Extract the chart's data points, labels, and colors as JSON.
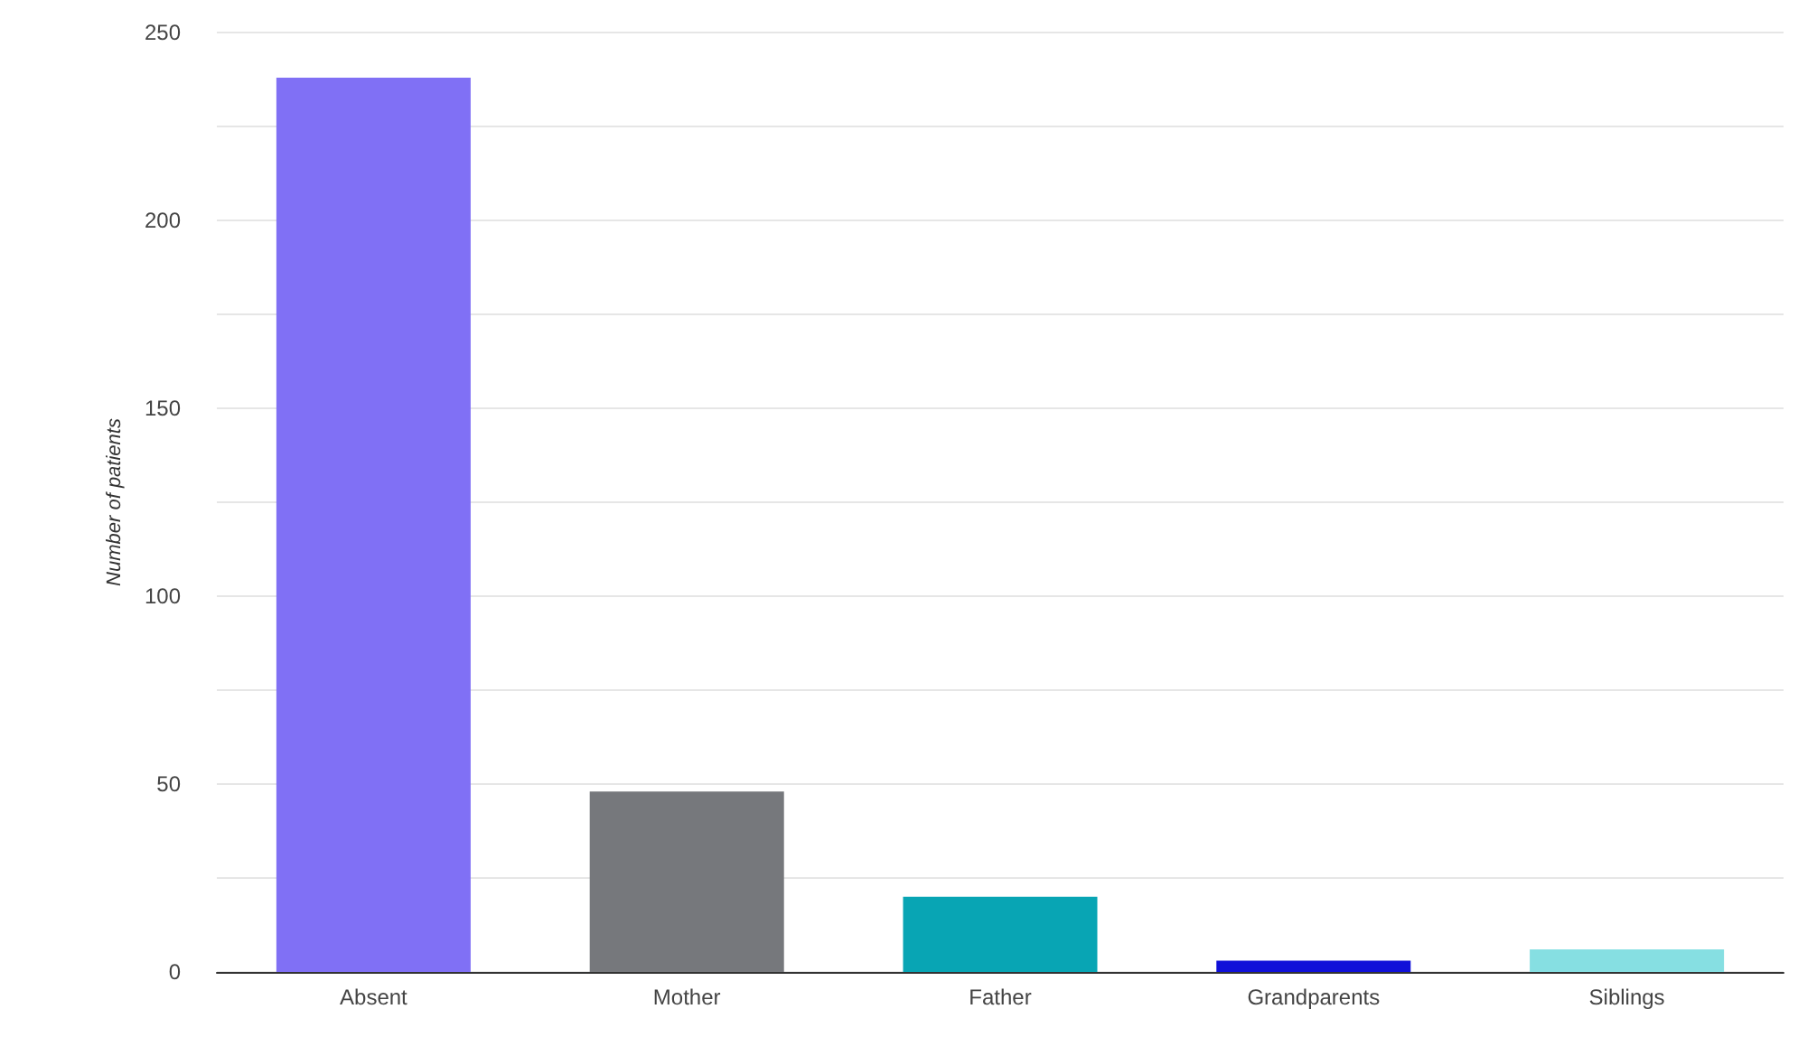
{
  "chart_data": {
    "type": "bar",
    "ylabel": "Number of patients",
    "categories": [
      "Absent",
      "Mother",
      "Father",
      "Grandparents",
      "Siblings"
    ],
    "values": [
      238,
      48,
      20,
      3,
      6
    ],
    "colors": [
      "#8070f5",
      "#76787c",
      "#08a5b4",
      "#1010d8",
      "#86dfe2"
    ],
    "ylim": [
      0,
      250
    ],
    "yticks": [
      0,
      {
        "value": 25,
        "label": null
      },
      50,
      {
        "value": 75,
        "label": null
      },
      100,
      {
        "value": 125,
        "label": null
      },
      150,
      {
        "value": 175,
        "label": null
      },
      200,
      {
        "value": 225,
        "label": null
      },
      250
    ],
    "grid": "y"
  }
}
